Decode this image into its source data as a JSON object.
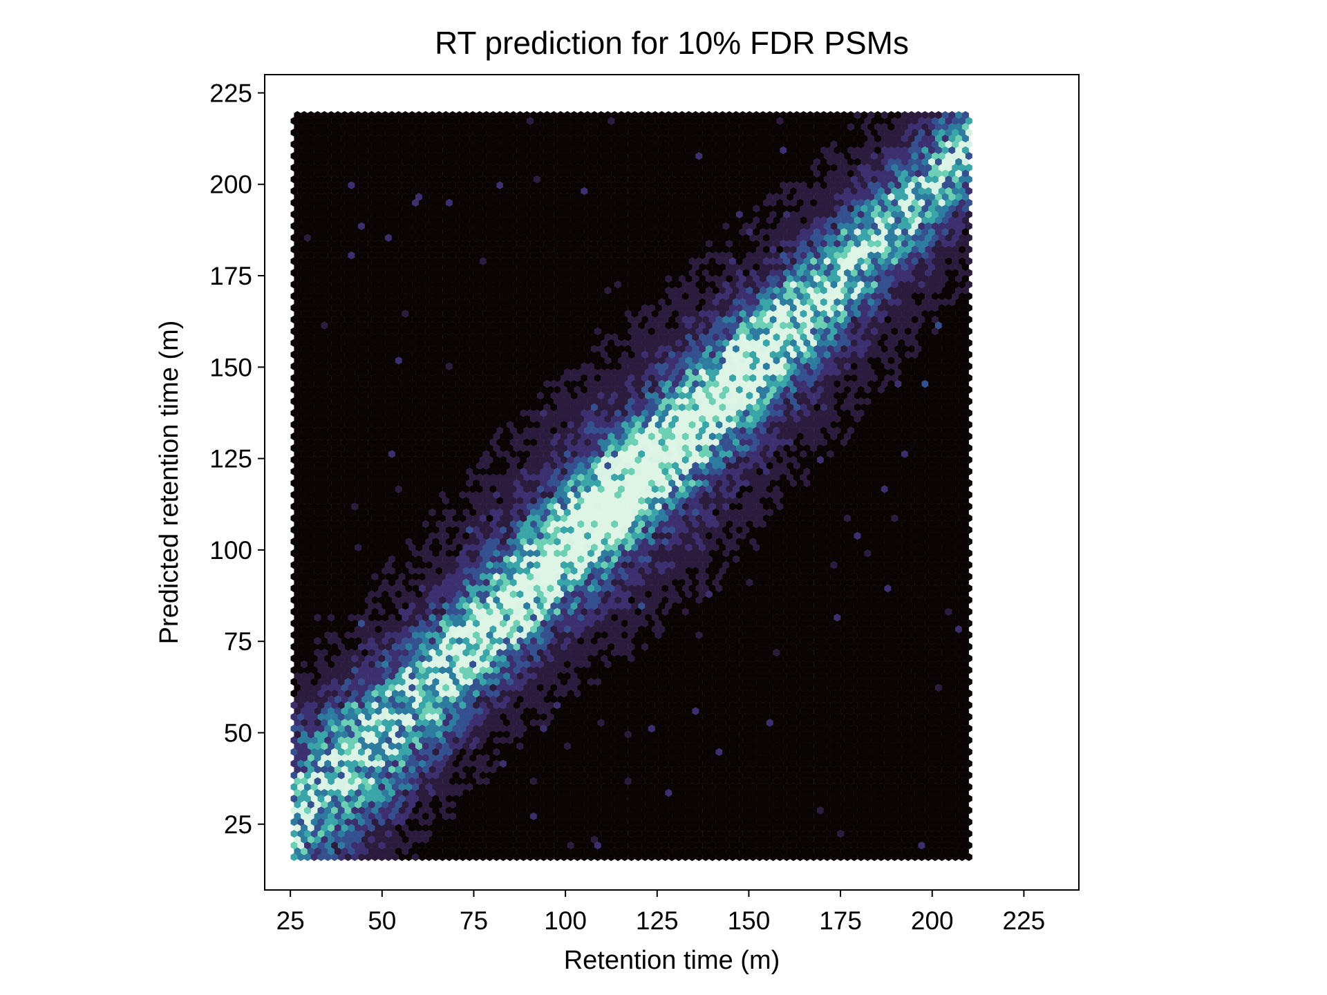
{
  "chart_data": {
    "type": "heatmap",
    "subtype": "hexbin",
    "title": "RT prediction for 10% FDR PSMs",
    "xlabel": "Retention time (m)",
    "ylabel": "Predicted retention time (m)",
    "xlim": [
      18,
      240
    ],
    "ylim": [
      7,
      230
    ],
    "xticks": [
      25,
      50,
      75,
      100,
      125,
      150,
      175,
      200,
      225
    ],
    "yticks": [
      25,
      50,
      75,
      100,
      125,
      150,
      175,
      200,
      225
    ],
    "grid": false,
    "data_extent": {
      "x": [
        26,
        210
      ],
      "y": [
        16,
        220
      ]
    },
    "hexbin": {
      "bins_x": 100,
      "colormap": "mako",
      "color_scale": [
        "#0b0405",
        "#2b1c3e",
        "#3b2f6f",
        "#35508f",
        "#2e7ba0",
        "#3aa5a8",
        "#6dd0b4",
        "#d8f3e5",
        "#def5e5"
      ],
      "description": "density concentrated along the line y ≈ x; densest band from about 80 to 160 minutes"
    }
  }
}
